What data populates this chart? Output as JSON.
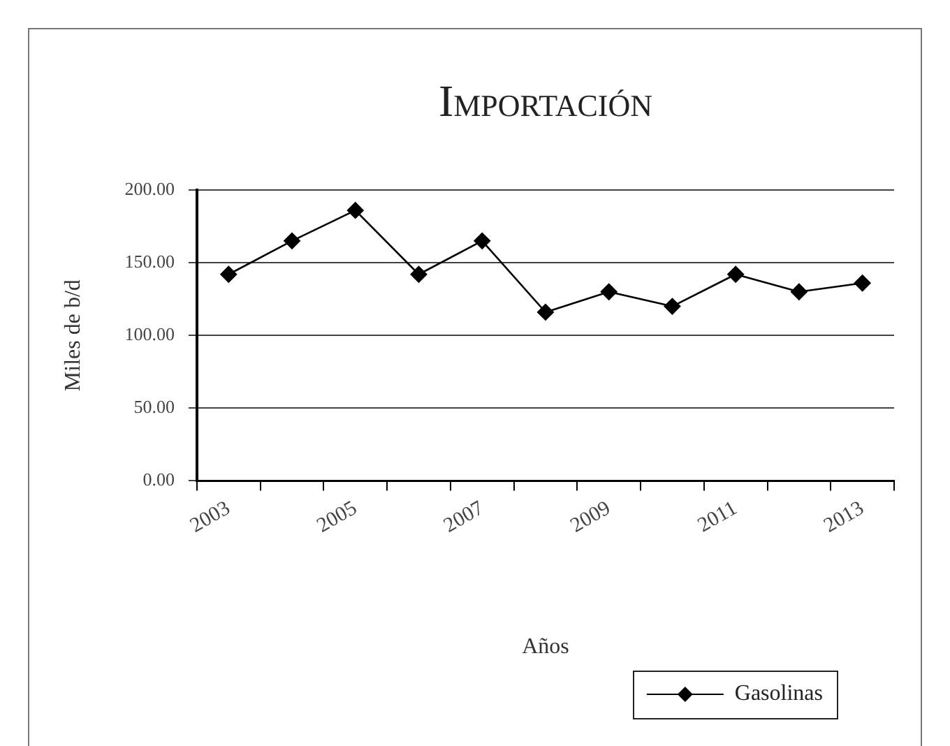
{
  "chart_data": {
    "type": "line",
    "title": "Importación",
    "xlabel": "Años",
    "ylabel": "Miles de b/d",
    "categories": [
      "2003",
      null,
      "2005",
      null,
      "2007",
      null,
      "2009",
      null,
      "2011",
      null,
      "2013"
    ],
    "series": [
      {
        "name": "Gasolinas",
        "color": "#000000",
        "values": [
          142,
          165,
          186,
          142,
          165,
          116,
          130,
          120,
          142,
          130,
          136
        ]
      }
    ],
    "ylim": [
      0,
      200
    ],
    "yticks": [
      {
        "value": 0,
        "label": "0.00"
      },
      {
        "value": 50,
        "label": "50.00"
      },
      {
        "value": 100,
        "label": "100.00"
      },
      {
        "value": 150,
        "label": "150.00"
      },
      {
        "value": 200,
        "label": "200.00"
      }
    ],
    "grid": "y",
    "legend": "bottom right",
    "marker": "diamond",
    "line_style": "solid"
  }
}
